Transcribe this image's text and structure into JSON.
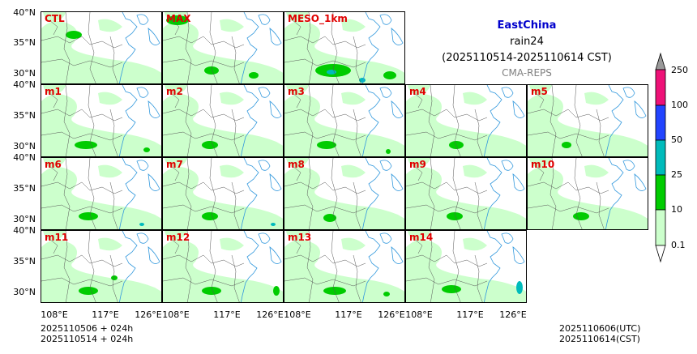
{
  "header": {
    "region": "EastChina",
    "variable": "rain24",
    "period": "(2025110514-2025110614 CST)",
    "system": "CMA-REPS"
  },
  "lat_labels": [
    "40°N",
    "35°N",
    "30°N"
  ],
  "lon_labels": [
    "108°E",
    "117°E",
    "126°E"
  ],
  "panels": [
    {
      "label": "CTL"
    },
    {
      "label": "MAX"
    },
    {
      "label": "MESO_1km"
    },
    {
      "label": "m1"
    },
    {
      "label": "m2"
    },
    {
      "label": "m3"
    },
    {
      "label": "m4"
    },
    {
      "label": "m5"
    },
    {
      "label": "m6"
    },
    {
      "label": "m7"
    },
    {
      "label": "m8"
    },
    {
      "label": "m9"
    },
    {
      "label": "m10"
    },
    {
      "label": "m11"
    },
    {
      "label": "m12"
    },
    {
      "label": "m13"
    },
    {
      "label": "m14"
    }
  ],
  "colorbar": {
    "levels": [
      "0.1",
      "10",
      "25",
      "50",
      "100",
      "250"
    ],
    "colors": [
      "#ccffcc",
      "#00cc00",
      "#00bbbb",
      "#2244ff",
      "#ee1177"
    ],
    "extend_color": "#999999"
  },
  "footer": {
    "init_line1": "2025110506  +  024h",
    "init_line2": "2025110514  +  024h",
    "valid_utc": "2025110606(UTC)",
    "valid_cst": "2025110614(CST)"
  },
  "colors": {
    "light_rain": "#ccffcc",
    "moderate_rain": "#00cc00",
    "heavy_rain": "#00bbbb",
    "rainstorm": "#2244ff",
    "panel_label": "#e00000",
    "title": "#0000cc",
    "river": "#3399dd"
  }
}
